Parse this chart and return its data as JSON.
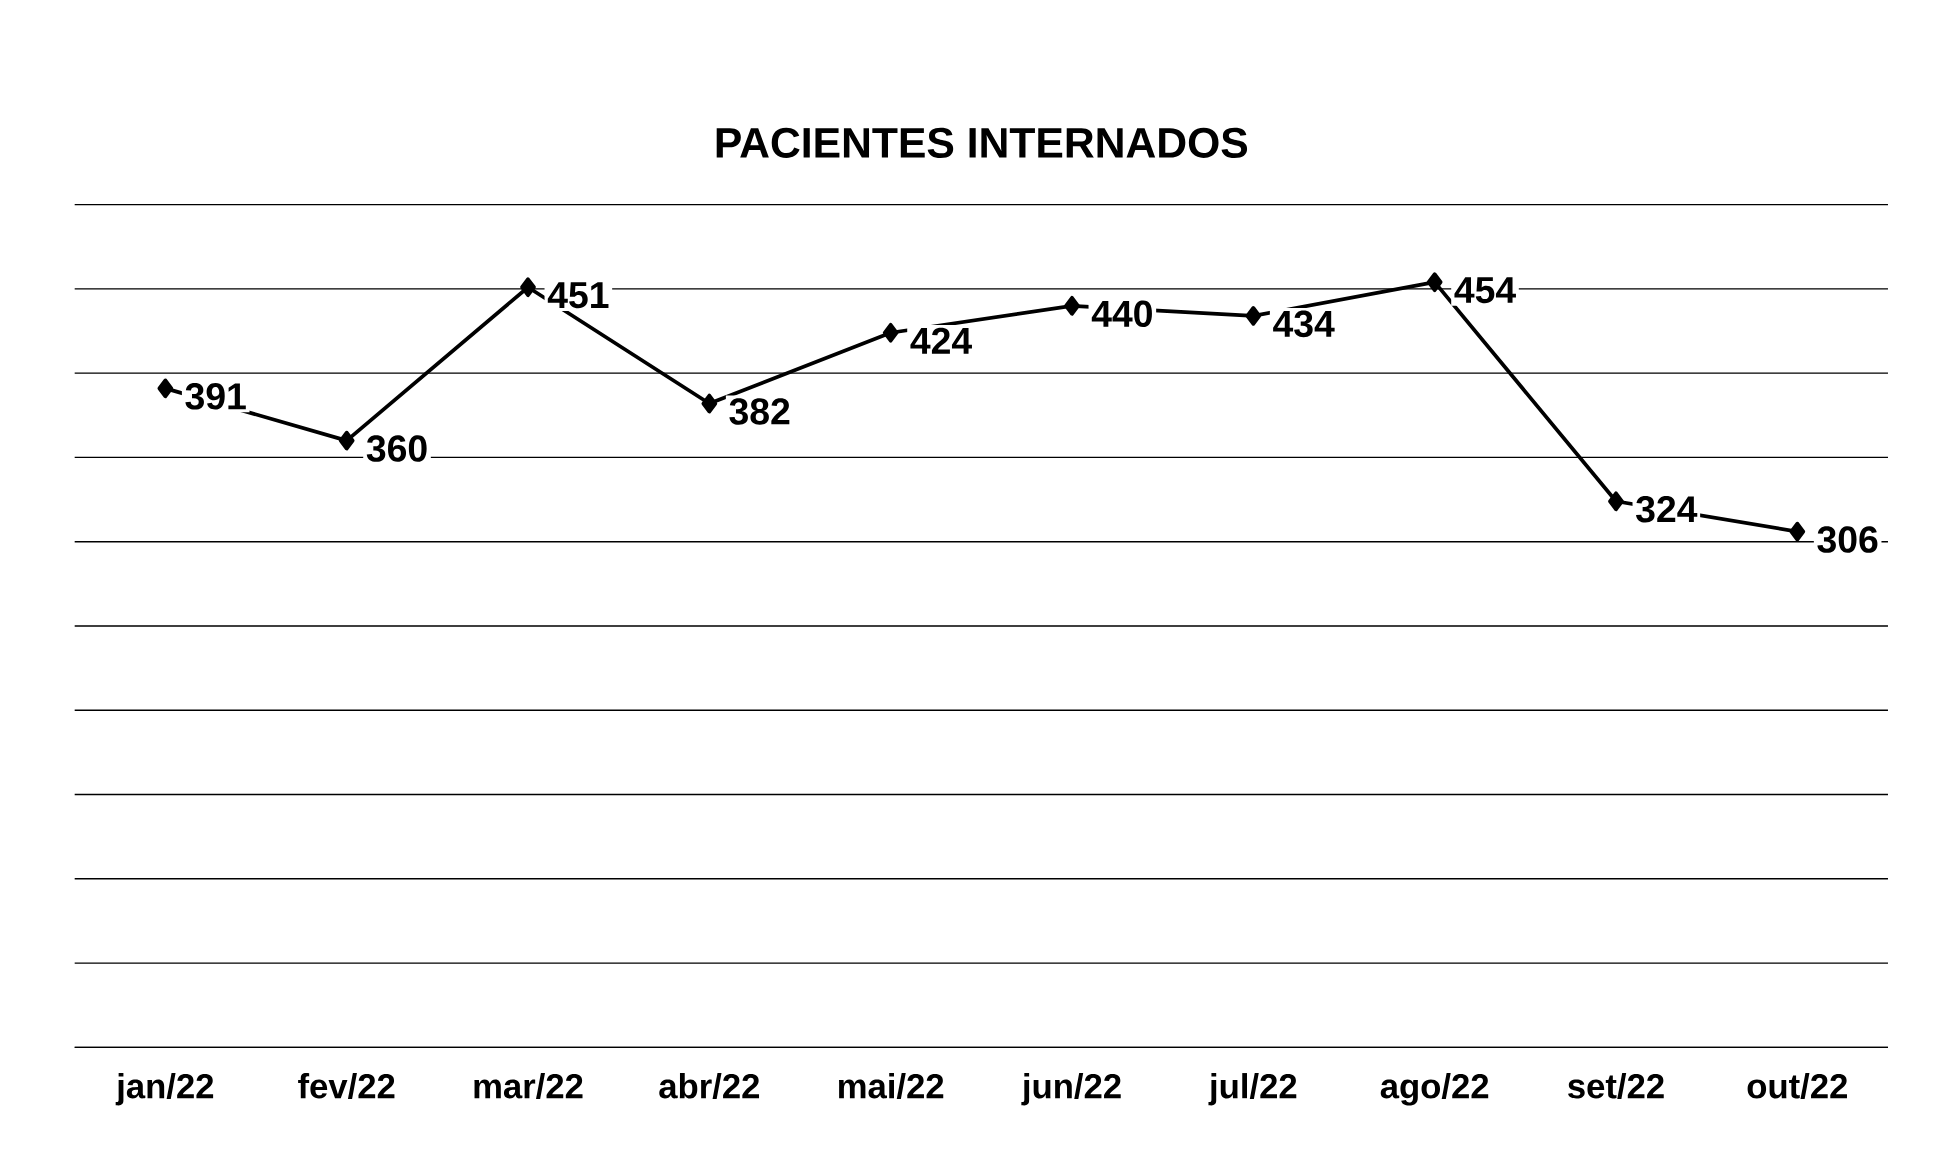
{
  "chart_data": {
    "type": "line",
    "title": "PACIENTES INTERNADOS",
    "categories": [
      "jan/22",
      "fev/22",
      "mar/22",
      "abr/22",
      "mai/22",
      "jun/22",
      "jul/22",
      "ago/22",
      "set/22",
      "out/22"
    ],
    "values": [
      391,
      360,
      451,
      382,
      424,
      440,
      434,
      454,
      324,
      306
    ],
    "color": "#000000",
    "marker": "diamond",
    "line_style": "solid",
    "data_labels": true,
    "ylim": [
      0,
      500
    ],
    "yticks": [
      {
        "value": 0,
        "label": null
      },
      {
        "value": 50,
        "label": null
      },
      {
        "value": 100,
        "label": null
      },
      {
        "value": 150,
        "label": null
      },
      {
        "value": 200,
        "label": null
      },
      {
        "value": 250,
        "label": null
      },
      {
        "value": 300,
        "label": null
      },
      {
        "value": 350,
        "label": null
      },
      {
        "value": 400,
        "label": null
      },
      {
        "value": 450,
        "label": null
      },
      {
        "value": 500,
        "label": null
      }
    ],
    "grid": "y",
    "tick_labels": "x"
  }
}
